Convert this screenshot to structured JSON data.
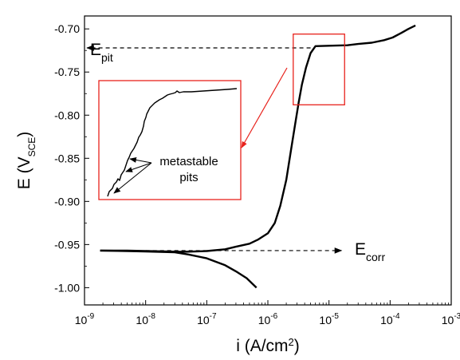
{
  "chart_data": {
    "type": "line",
    "x_scale": "log",
    "xlim": [
      1e-09,
      0.001
    ],
    "ylim": [
      -1.02,
      -0.685
    ],
    "x_ticks": [
      {
        "mantissa": "10",
        "exp": "-9"
      },
      {
        "mantissa": "10",
        "exp": "-8"
      },
      {
        "mantissa": "10",
        "exp": "-7"
      },
      {
        "mantissa": "10",
        "exp": "-6"
      },
      {
        "mantissa": "10",
        "exp": "-5"
      },
      {
        "mantissa": "10",
        "exp": "-4"
      },
      {
        "mantissa": "10",
        "exp": "-3"
      }
    ],
    "y_ticks": [
      {
        "value": -1.0,
        "label": "-1.00"
      },
      {
        "value": -0.95,
        "label": "-0.95"
      },
      {
        "value": -0.9,
        "label": "-0.90"
      },
      {
        "value": -0.85,
        "label": "-0.85"
      },
      {
        "value": -0.8,
        "label": "-0.80"
      },
      {
        "value": -0.75,
        "label": "-0.75"
      },
      {
        "value": -0.7,
        "label": "-0.70"
      }
    ],
    "xlabel": {
      "main": "i (A/cm",
      "sup": "2",
      "end": ")"
    },
    "ylabel": {
      "main": "E (V",
      "sub": "SCE",
      "end": ")"
    },
    "grid": false,
    "legend": "none",
    "series": [
      {
        "color": "#000000",
        "points": [
          [
            1.8e-09,
            -0.957
          ],
          [
            5e-09,
            -0.957
          ],
          [
            1e-08,
            -0.9575
          ],
          [
            2e-08,
            -0.958
          ],
          [
            4e-08,
            -0.9585
          ],
          [
            1e-07,
            -0.9575
          ],
          [
            2e-07,
            -0.9555
          ],
          [
            3e-07,
            -0.9525
          ],
          [
            5e-07,
            -0.949
          ],
          [
            7e-07,
            -0.944
          ],
          [
            1e-06,
            -0.937
          ],
          [
            1.3e-06,
            -0.925
          ],
          [
            1.6e-06,
            -0.905
          ],
          [
            2e-06,
            -0.875
          ],
          [
            2.4e-06,
            -0.84
          ],
          [
            2.8e-06,
            -0.81
          ],
          [
            3.2e-06,
            -0.785
          ],
          [
            3.6e-06,
            -0.765
          ],
          [
            4.2e-06,
            -0.745
          ],
          [
            5e-06,
            -0.728
          ],
          [
            6e-06,
            -0.72
          ],
          [
            1e-05,
            -0.7195
          ],
          [
            2e-05,
            -0.719
          ],
          [
            3e-05,
            -0.7175
          ],
          [
            5e-05,
            -0.716
          ],
          [
            8e-05,
            -0.713
          ],
          [
            0.00011,
            -0.71
          ],
          [
            0.00015,
            -0.705
          ],
          [
            0.0002,
            -0.7
          ],
          [
            0.00026,
            -0.696
          ]
        ]
      },
      {
        "color": "#000000",
        "points": [
          [
            1.8e-09,
            -0.957
          ],
          [
            5e-09,
            -0.9575
          ],
          [
            1e-08,
            -0.958
          ],
          [
            3e-08,
            -0.959
          ],
          [
            5e-08,
            -0.9615
          ],
          [
            1e-07,
            -0.966
          ],
          [
            2e-07,
            -0.974
          ],
          [
            3e-07,
            -0.981
          ],
          [
            4.5e-07,
            -0.989
          ],
          [
            6.5e-07,
            -1.0
          ]
        ]
      }
    ],
    "annotations": {
      "epit": {
        "main": "E",
        "sub": "pit"
      },
      "ecorr": {
        "main": "E",
        "sub": "corr"
      },
      "inset_label_line1": "metastable",
      "inset_label_line2": "pits"
    },
    "reference_lines": [
      {
        "name": "E_pit",
        "x_from": 5e-06,
        "x_to": 1.1e-09,
        "y": -0.722
      },
      {
        "name": "E_corr",
        "x_from": 1e-08,
        "x_to": 1.6e-05,
        "y": -0.957
      }
    ],
    "zoom_box": {
      "x_range": [
        2.6e-06,
        1.8e-05
      ],
      "y_range": [
        -0.788,
        -0.706
      ]
    },
    "colors": {
      "highlight": "#e8221c",
      "line": "#000000"
    }
  }
}
